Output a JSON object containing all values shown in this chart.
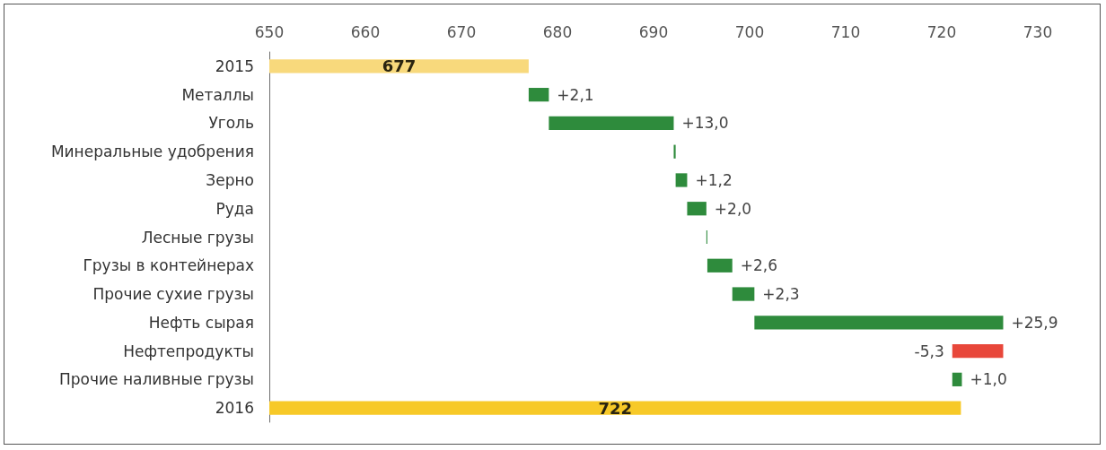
{
  "chart_data": {
    "type": "bar",
    "orientation": "horizontal",
    "categories": [
      "2015",
      "Металлы",
      "Уголь",
      "Минеральные удобрения",
      "Зерно",
      "Руда",
      "Лесные грузы",
      "Грузы в контейнерах",
      "Прочие сухие грузы",
      "Нефть сырая",
      "Нефтепродукты",
      "Прочие наливные грузы",
      "2016"
    ],
    "values": [
      677,
      2.1,
      13.0,
      0.2,
      1.2,
      2.0,
      0.1,
      2.6,
      2.3,
      25.9,
      -5.3,
      1.0,
      722
    ],
    "base": [
      null,
      677,
      679.1,
      692.1,
      692.3,
      693.5,
      695.5,
      695.6,
      698.2,
      700.5,
      726.4,
      721.1,
      null
    ],
    "colors": [
      "#f8d97c",
      "#2e8b3c",
      "#2e8b3c",
      "#2e8b3c",
      "#2e8b3c",
      "#2e8b3c",
      "#2e8b3c",
      "#2e8b3c",
      "#2e8b3c",
      "#2e8b3c",
      "#e8473a",
      "#2e8b3c",
      "#f7c928"
    ],
    "value_labels": [
      "677",
      "+2,1",
      "+13,0",
      null,
      "+1,2",
      "+2,0",
      null,
      "+2,6",
      "+2,3",
      "+25,9",
      "-5,3",
      "+1,0",
      "722"
    ],
    "xlim": [
      650,
      730
    ],
    "xticks": [
      650,
      660,
      670,
      680,
      690,
      700,
      710,
      720,
      730
    ],
    "grid": false
  }
}
